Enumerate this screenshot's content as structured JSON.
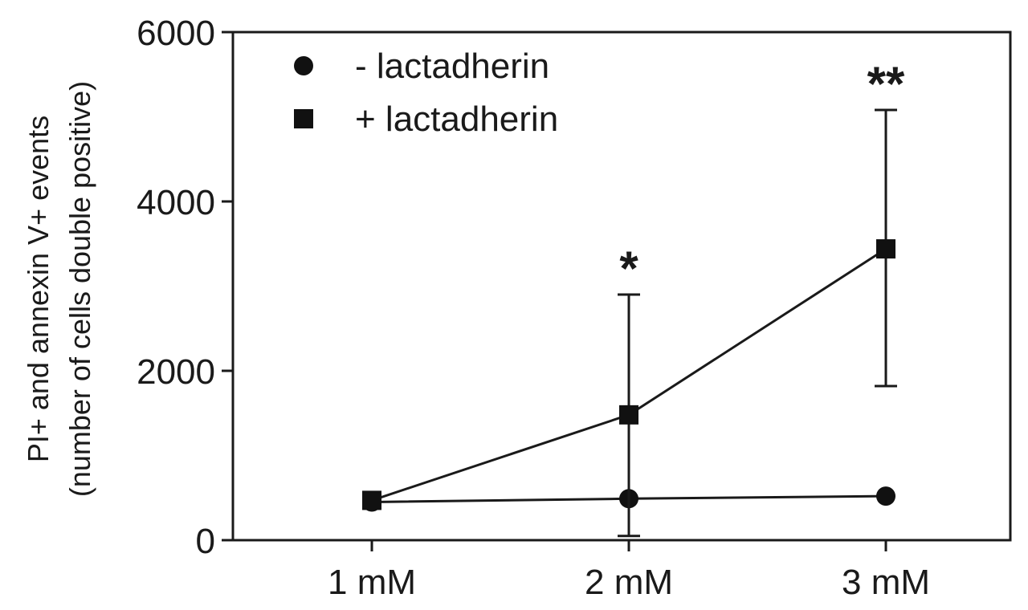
{
  "chart_data": {
    "type": "line",
    "categories": [
      "1 mM",
      "2 mM",
      "3 mM"
    ],
    "series": [
      {
        "name": "- lactadherin",
        "marker": "circle",
        "values": [
          450,
          490,
          520
        ],
        "error": [
          null,
          null,
          null
        ]
      },
      {
        "name": "+ lactadherin",
        "marker": "square",
        "values": [
          470,
          1480,
          3440
        ],
        "error_low": [
          null,
          50,
          1820
        ],
        "error_high": [
          null,
          2900,
          5080
        ]
      }
    ],
    "ylabel_line1": "PI+ and annexin V+ events",
    "ylabel_line2": "(number of cells double positive)",
    "ylim": [
      0,
      6000
    ],
    "yticks": [
      "0",
      "2000",
      "4000",
      "6000"
    ],
    "annotations": [
      {
        "category": "2 mM",
        "text": "*"
      },
      {
        "category": "3 mM",
        "text": "**"
      }
    ],
    "legend_position": "top-left",
    "grid": false,
    "colors": {
      "line": "#1a1a1a",
      "marker": "#111111"
    }
  }
}
